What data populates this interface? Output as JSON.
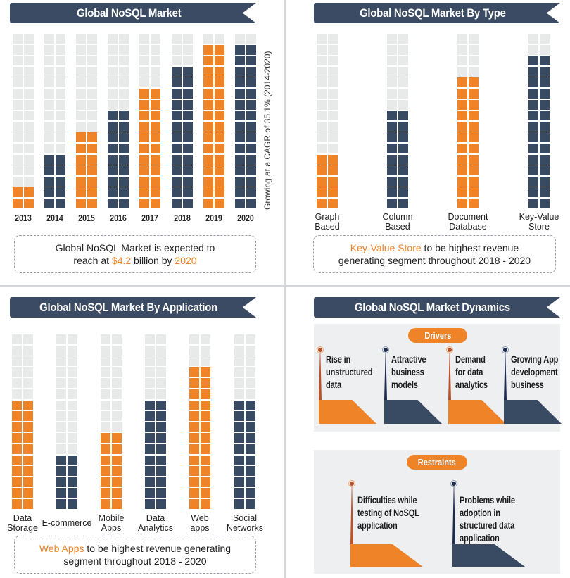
{
  "colors": {
    "orange": "#ee8427",
    "navy": "#394b63",
    "empty": "#e8eaea",
    "banner": "#3a4b63",
    "panel_bg": "#eeeff1"
  },
  "panels": {
    "market": {
      "title": "Global NoSQL Market",
      "side_note": "Growing at a CAGR of 35.1% (2014-2020)",
      "callout": {
        "line1": "Global NoSQL Market is expected to",
        "line2_pre": "reach at ",
        "line2_value": "$4.2",
        "line2_mid": " billion by ",
        "line2_year": "2020"
      }
    },
    "by_type": {
      "title": "Global NoSQL Market By Type",
      "labels": [
        {
          "line1": "Graph",
          "line2": "Based"
        },
        {
          "line1": "Column",
          "line2": "Based"
        },
        {
          "line1": "Document",
          "line2": "Database"
        },
        {
          "line1": "Key-Value",
          "line2": "Store"
        }
      ],
      "callout": {
        "highlight": "Key-Value Store",
        "line1_rest": " to be highest revenue",
        "line2": "generating segment throughout 2018 - 2020"
      }
    },
    "by_application": {
      "title": "Global NoSQL Market By Application",
      "labels": [
        {
          "line1": "Data",
          "line2": "Storage"
        },
        {
          "line1": "",
          "line2": "E-commerce"
        },
        {
          "line1": "Mobile",
          "line2": "Apps"
        },
        {
          "line1": "Data",
          "line2": "Analytics"
        },
        {
          "line1": "Web",
          "line2": "apps"
        },
        {
          "line1": "Social",
          "line2": "Networks"
        }
      ],
      "callout": {
        "highlight": "Web Apps",
        "line1_rest": " to be highest revenue generating",
        "line2": "segment throughout 2018 - 2020"
      }
    },
    "dynamics": {
      "title": "Global NoSQL Market Dynamics",
      "drivers_label": "Drivers",
      "drivers": [
        {
          "text": "Rise in\nunstructured\ndata",
          "color": "orange"
        },
        {
          "text": "Attractive\nbusiness\nmodels",
          "color": "navy"
        },
        {
          "text": "Demand\nfor data\nanalytics",
          "color": "orange"
        },
        {
          "text": "Growing App\ndevelopment\nbusiness",
          "color": "navy"
        }
      ],
      "restraints_label": "Restraints",
      "restraints": [
        {
          "text": "Difficulties while\ntesting of NoSQL\napplication",
          "color": "orange"
        },
        {
          "text": "Problems while\nadoption in\nstructured data\napplication",
          "color": "navy"
        }
      ]
    }
  },
  "chart_data": [
    {
      "type": "bar",
      "title": "Global NoSQL Market",
      "style": "stacked-square pictogram (16-cell columns)",
      "categories": [
        "2013",
        "2014",
        "2015",
        "2016",
        "2017",
        "2018",
        "2019",
        "2020"
      ],
      "values": [
        2,
        5,
        7,
        9,
        11,
        13,
        15,
        15
      ],
      "max_cells": 16,
      "bar_colors": [
        "orange",
        "navy",
        "orange",
        "navy",
        "orange",
        "navy",
        "orange",
        "navy"
      ],
      "annotation": "Growing at a CAGR of 35.1% (2014-2020)",
      "xlabel": "",
      "ylabel": ""
    },
    {
      "type": "bar",
      "title": "Global NoSQL Market By Type",
      "style": "stacked-square pictogram (16-cell columns)",
      "categories": [
        "Graph Based",
        "Column Based",
        "Document Database",
        "Key-Value Store"
      ],
      "values": [
        5,
        9,
        12,
        14
      ],
      "max_cells": 16,
      "bar_colors": [
        "orange",
        "navy",
        "orange",
        "navy"
      ]
    },
    {
      "type": "bar",
      "title": "Global NoSQL Market By Application",
      "style": "stacked-square pictogram (16-cell columns)",
      "categories": [
        "Data Storage",
        "E-commerce",
        "Mobile Apps",
        "Data Analytics",
        "Web apps",
        "Social Networks"
      ],
      "values": [
        10,
        5,
        7,
        10,
        13,
        10
      ],
      "max_cells": 16,
      "bar_colors": [
        "orange",
        "navy",
        "orange",
        "navy",
        "orange",
        "navy"
      ]
    }
  ]
}
